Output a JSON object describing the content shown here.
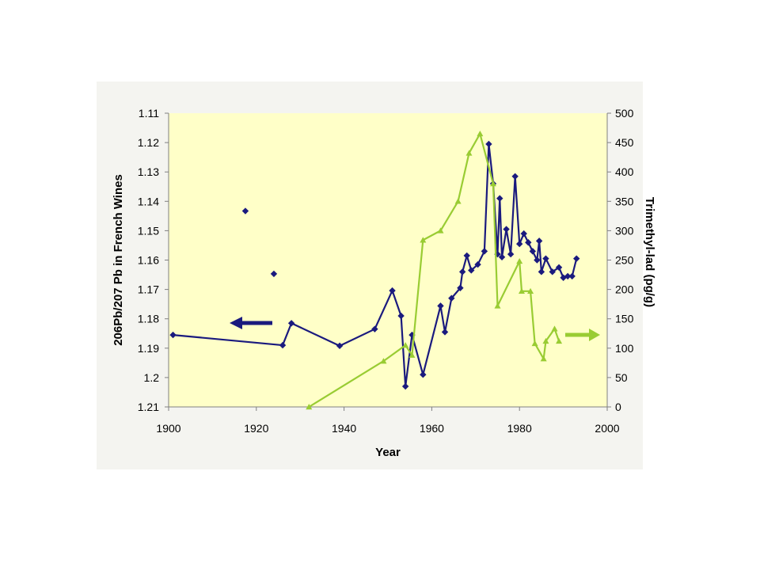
{
  "chart_data": {
    "type": "line",
    "title": "",
    "xlabel": "Year",
    "ylabel_left": "206Pb/207 Pb in French Wines",
    "ylabel_right": "Trimethyl-lad (pg/g)",
    "xlim": [
      1900,
      2000
    ],
    "x_ticks": [
      "1900",
      "1920",
      "1940",
      "1960",
      "1980",
      "2000"
    ],
    "ylim_left": [
      1.11,
      1.21
    ],
    "left_axis_inverted": true,
    "y_ticks_left": [
      "1.11",
      "1.12",
      "1.13",
      "1.14",
      "1.15",
      "1.16",
      "1.17",
      "1.18",
      "1.19",
      "1.2",
      "1.21"
    ],
    "ylim_right": [
      0,
      500
    ],
    "y_ticks_right": [
      "500",
      "450",
      "400",
      "350",
      "300",
      "250",
      "200",
      "150",
      "100",
      "50",
      "0"
    ],
    "grid": false,
    "legend": "none",
    "colors": {
      "plot_background": "#ffffc8",
      "lead_isotope": "#1a1a7e",
      "trimethyl_lead": "#99cc33",
      "outer_frame": "#f4f4f0"
    },
    "series": [
      {
        "axis": "left",
        "marker": "diamond",
        "connected": true,
        "x": [
          1901,
          1926,
          1928,
          1939,
          1947,
          1951,
          1953,
          1954,
          1955.5,
          1958,
          1962,
          1963,
          1964.5,
          1966.5,
          1967,
          1968,
          1969,
          1970.5,
          1972,
          1973,
          1974,
          1975,
          1975.5,
          1976,
          1977,
          1978,
          1979,
          1980,
          1981,
          1982,
          1983,
          1984,
          1984.5,
          1985,
          1986,
          1987.5,
          1989,
          1990,
          1991,
          1992,
          1993
        ],
        "y": [
          1.1855,
          1.189,
          1.1815,
          1.1892,
          1.1835,
          1.1704,
          1.179,
          1.203,
          1.1855,
          1.199,
          1.1756,
          1.1845,
          1.173,
          1.1695,
          1.164,
          1.1585,
          1.1635,
          1.1615,
          1.157,
          1.1205,
          1.134,
          1.158,
          1.139,
          1.159,
          1.1495,
          1.158,
          1.1315,
          1.1545,
          1.151,
          1.154,
          1.157,
          1.16,
          1.1535,
          1.164,
          1.1595,
          1.164,
          1.1625,
          1.166,
          1.1655,
          1.1655,
          1.1595
        ]
      },
      {
        "axis": "left",
        "marker": "diamond",
        "connected": false,
        "x": [
          1917.5,
          1924
        ],
        "y": [
          1.1433,
          1.1647
        ]
      },
      {
        "axis": "right",
        "marker": "triangle",
        "connected": true,
        "x": [
          1932,
          1949,
          1954,
          1955.5,
          1958,
          1962,
          1966,
          1968.5,
          1971,
          1974,
          1975,
          1980,
          1980.5,
          1982.5,
          1983.5,
          1985.5,
          1986,
          1988,
          1989
        ],
        "y": [
          0,
          78,
          105,
          88,
          284,
          300,
          350,
          432,
          465,
          380,
          172,
          248,
          197,
          197,
          108,
          82,
          112,
          133,
          112
        ]
      }
    ],
    "annotations": [
      {
        "type": "arrow",
        "direction": "left",
        "refers_to_axis": "left",
        "color": "#1a1a7e"
      },
      {
        "type": "arrow",
        "direction": "right",
        "refers_to_axis": "right",
        "color": "#99cc33"
      }
    ]
  }
}
